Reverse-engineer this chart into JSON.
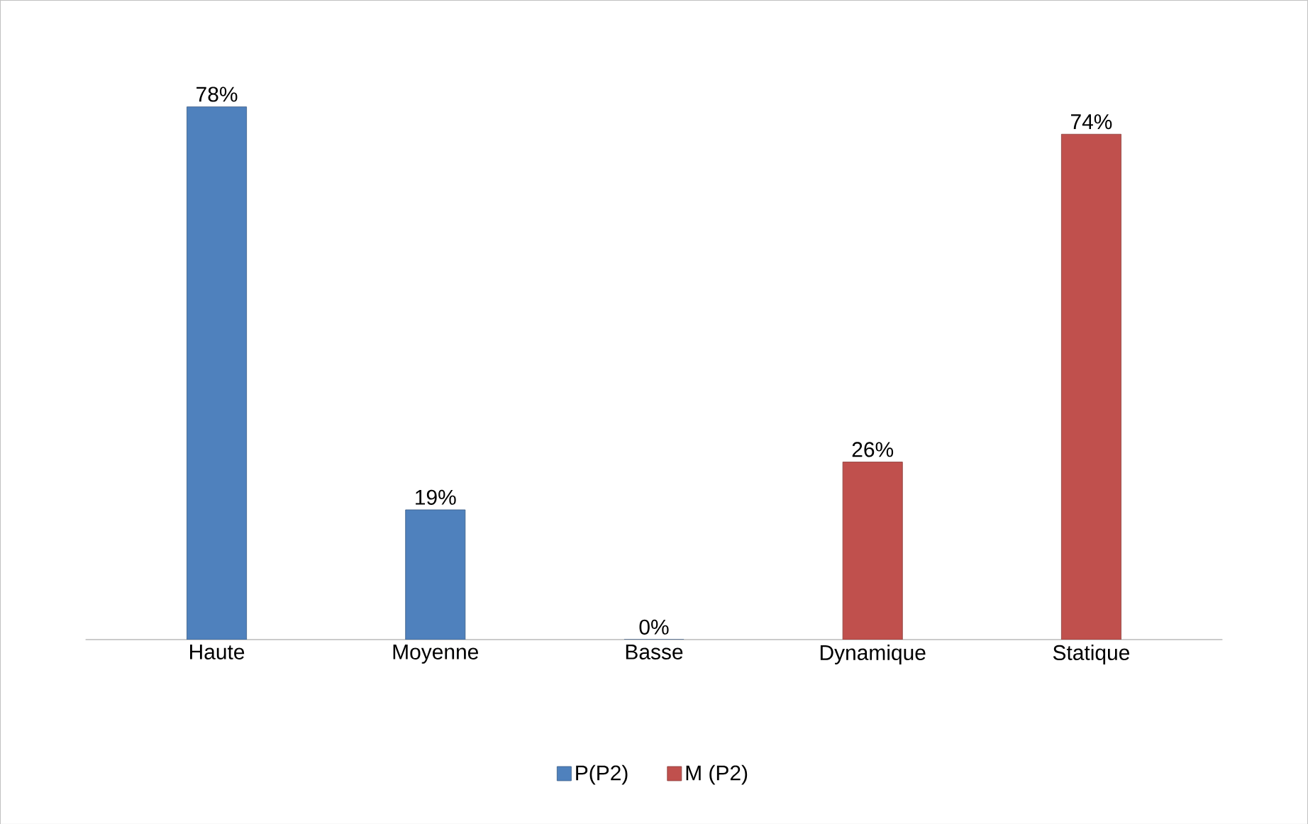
{
  "chart_data": {
    "type": "bar",
    "categories": [
      "Haute",
      "Moyenne",
      "Basse",
      "Dynamique",
      "Statique"
    ],
    "series": [
      {
        "name": "P(P2)",
        "color": "#4f81bd",
        "values": [
          78,
          19,
          0,
          null,
          null
        ],
        "value_labels": [
          "78%",
          "19%",
          "0%",
          null,
          null
        ]
      },
      {
        "name": "M (P2)",
        "color": "#c0504d",
        "values": [
          null,
          null,
          null,
          26,
          74
        ],
        "value_labels": [
          null,
          null,
          null,
          "26%",
          "74%"
        ]
      }
    ],
    "tick_labels": "x",
    "legend": "bottom"
  }
}
